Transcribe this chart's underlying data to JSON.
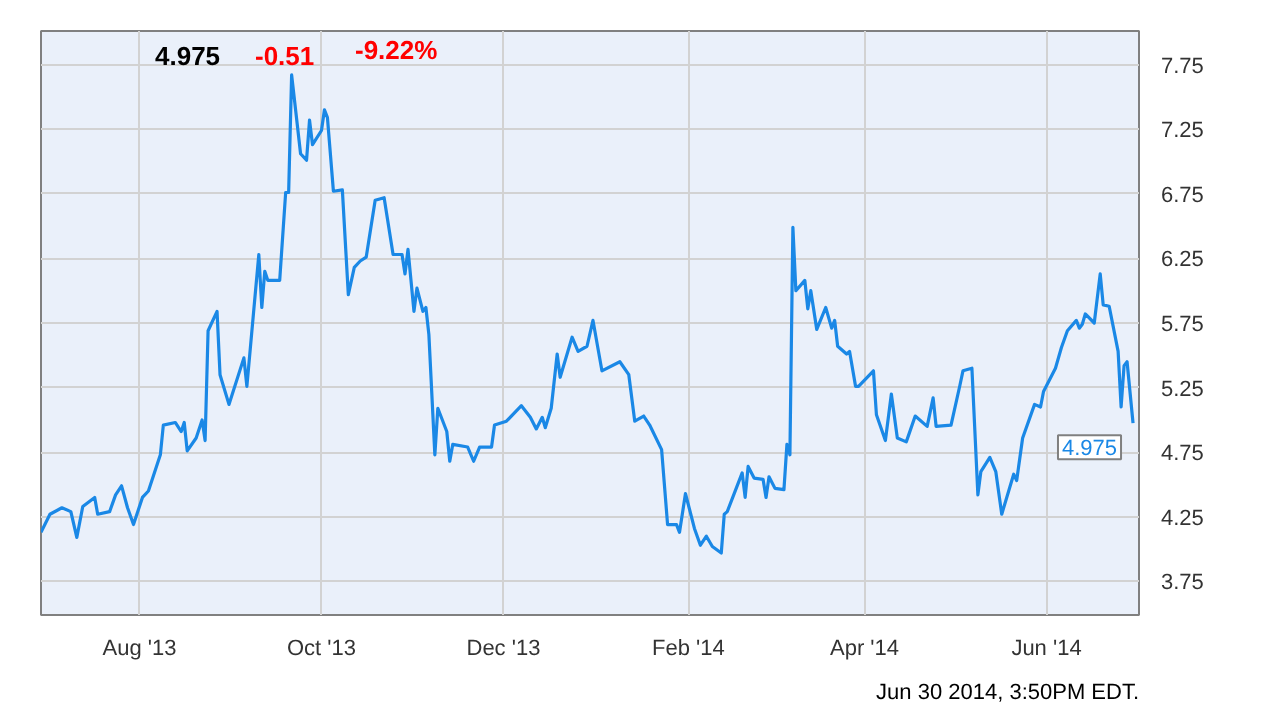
{
  "chart_data": {
    "type": "line",
    "annotations": [
      "4.975",
      "-0.51",
      "-9.22%",
      "Jun 30 2014, 3:50PM EDT.",
      {
        "text": "4.975",
        "x": "2014-06-30",
        "y": 4.975
      }
    ],
    "x": [
      "2013-06-29",
      "2013-07-02",
      "2013-07-06",
      "2013-07-09",
      "2013-07-11",
      "2013-07-13",
      "2013-07-17",
      "2013-07-18",
      "2013-07-22",
      "2013-07-24",
      "2013-07-26",
      "2013-07-28",
      "2013-07-30",
      "2013-08-02",
      "2013-08-04",
      "2013-08-08",
      "2013-08-09",
      "2013-08-13",
      "2013-08-15",
      "2013-08-16",
      "2013-08-17",
      "2013-08-20",
      "2013-08-22",
      "2013-08-23",
      "2013-08-24",
      "2013-08-27",
      "2013-08-28",
      "2013-08-31",
      "2013-09-05",
      "2013-09-06",
      "2013-09-10",
      "2013-09-11",
      "2013-09-12",
      "2013-09-13",
      "2013-09-17",
      "2013-09-19",
      "2013-09-20",
      "2013-09-21",
      "2013-09-24",
      "2013-09-26",
      "2013-09-27",
      "2013-09-28",
      "2013-10-01",
      "2013-10-02",
      "2013-10-03",
      "2013-10-05",
      "2013-10-08",
      "2013-10-10",
      "2013-10-12",
      "2013-10-14",
      "2013-10-16",
      "2013-10-19",
      "2013-10-22",
      "2013-10-25",
      "2013-10-28",
      "2013-10-29",
      "2013-10-30",
      "2013-11-01",
      "2013-11-02",
      "2013-11-04",
      "2013-11-05",
      "2013-11-06",
      "2013-11-08",
      "2013-11-09",
      "2013-11-12",
      "2013-11-13",
      "2013-11-14",
      "2013-11-19",
      "2013-11-21",
      "2013-11-23",
      "2013-11-27",
      "2013-11-28",
      "2013-12-02",
      "2013-12-07",
      "2013-12-10",
      "2013-12-12",
      "2013-12-14",
      "2013-12-15",
      "2013-12-17",
      "2013-12-19",
      "2013-12-20",
      "2013-12-24",
      "2013-12-26",
      "2013-12-29",
      "2013-12-31",
      "2014-01-03",
      "2014-01-09",
      "2014-01-12",
      "2014-01-14",
      "2014-01-17",
      "2014-01-19",
      "2014-01-23",
      "2014-01-25",
      "2014-01-26",
      "2014-01-28",
      "2014-01-29",
      "2014-01-31",
      "2014-02-03",
      "2014-02-05",
      "2014-02-07",
      "2014-02-09",
      "2014-02-12",
      "2014-02-13",
      "2014-02-14",
      "2014-02-16",
      "2014-02-19",
      "2014-02-20",
      "2014-02-21",
      "2014-02-23",
      "2014-02-26",
      "2014-02-27",
      "2014-02-28",
      "2014-03-02",
      "2014-03-05",
      "2014-03-06",
      "2014-03-07",
      "2014-03-08",
      "2014-03-09",
      "2014-03-12",
      "2014-03-13",
      "2014-03-14",
      "2014-03-16",
      "2014-03-19",
      "2014-03-21",
      "2014-03-22",
      "2014-03-23",
      "2014-03-26",
      "2014-03-27",
      "2014-03-29",
      "2014-03-30",
      "2014-04-04",
      "2014-04-05",
      "2014-04-08",
      "2014-04-10",
      "2014-04-12",
      "2014-04-15",
      "2014-04-18",
      "2014-04-22",
      "2014-04-24",
      "2014-04-25",
      "2014-04-30",
      "2014-05-03",
      "2014-05-04",
      "2014-05-07",
      "2014-05-09",
      "2014-05-10",
      "2014-05-13",
      "2014-05-15",
      "2014-05-17",
      "2014-05-21",
      "2014-05-22",
      "2014-05-24",
      "2014-05-28",
      "2014-05-30",
      "2014-05-31",
      "2014-06-04",
      "2014-06-06",
      "2014-06-08",
      "2014-06-11",
      "2014-06-12",
      "2014-06-13",
      "2014-06-14",
      "2014-06-17",
      "2014-06-19",
      "2014-06-20",
      "2014-06-22",
      "2014-06-25",
      "2014-06-26",
      "2014-06-27",
      "2014-06-28",
      "2014-06-30"
    ],
    "series": [
      {
        "color": "#1a88e6",
        "values": [
          4.13,
          4.27,
          4.32,
          4.29,
          4.09,
          4.33,
          4.4,
          4.27,
          4.29,
          4.42,
          4.49,
          4.32,
          4.19,
          4.4,
          4.45,
          4.73,
          4.96,
          4.98,
          4.91,
          4.98,
          4.76,
          4.86,
          5.0,
          4.84,
          5.69,
          5.84,
          5.35,
          5.12,
          5.48,
          5.26,
          6.28,
          5.87,
          6.15,
          6.08,
          6.08,
          6.76,
          6.76,
          7.67,
          7.06,
          7.01,
          7.32,
          7.13,
          7.24,
          7.4,
          7.34,
          6.77,
          6.78,
          5.97,
          6.18,
          6.23,
          6.26,
          6.7,
          6.72,
          6.28,
          6.28,
          6.13,
          6.32,
          5.84,
          6.02,
          5.84,
          5.87,
          5.66,
          4.73,
          5.09,
          4.91,
          4.68,
          4.81,
          4.79,
          4.68,
          4.79,
          4.79,
          4.96,
          4.99,
          5.11,
          5.02,
          4.93,
          5.02,
          4.94,
          5.09,
          5.51,
          5.33,
          5.64,
          5.53,
          5.57,
          5.77,
          5.38,
          5.45,
          5.35,
          4.99,
          5.03,
          4.96,
          4.77,
          4.19,
          4.19,
          4.19,
          4.13,
          4.43,
          4.16,
          4.03,
          4.1,
          4.02,
          3.97,
          4.27,
          4.29,
          4.41,
          4.59,
          4.4,
          4.64,
          4.55,
          4.54,
          4.4,
          4.56,
          4.47,
          4.46,
          4.81,
          4.73,
          6.49,
          6.0,
          6.08,
          5.86,
          6.0,
          5.7,
          5.87,
          5.71,
          5.77,
          5.57,
          5.51,
          5.53,
          5.26,
          5.26,
          5.38,
          5.04,
          4.84,
          5.2,
          4.86,
          4.83,
          5.03,
          4.95,
          5.17,
          4.95,
          4.96,
          5.27,
          5.38,
          5.4,
          4.42,
          4.6,
          4.71,
          4.6,
          4.27,
          4.58,
          4.53,
          4.86,
          5.12,
          5.1,
          5.22,
          5.4,
          5.56,
          5.69,
          5.77,
          5.71,
          5.74,
          5.82,
          5.75,
          6.13,
          5.89,
          5.88,
          5.53,
          5.1,
          5.42,
          5.45,
          4.975
        ]
      }
    ],
    "xlim": [
      "2013-06-29",
      "2014-07-02"
    ],
    "xticks": [
      {
        "value": "2013-08-01",
        "label": "Aug '13"
      },
      {
        "value": "2013-10-01",
        "label": "Oct '13"
      },
      {
        "value": "2013-12-01",
        "label": "Dec '13"
      },
      {
        "value": "2014-02-01",
        "label": "Feb '14"
      },
      {
        "value": "2014-04-01",
        "label": "Apr '14"
      },
      {
        "value": "2014-06-01",
        "label": "Jun '14"
      }
    ],
    "ylim": [
      3.49,
      8.01
    ],
    "yticks": [
      3.75,
      4.25,
      4.75,
      5.25,
      5.75,
      6.25,
      6.75,
      7.25,
      7.75
    ],
    "grid": true,
    "marker": "none",
    "line_style": "solid"
  }
}
